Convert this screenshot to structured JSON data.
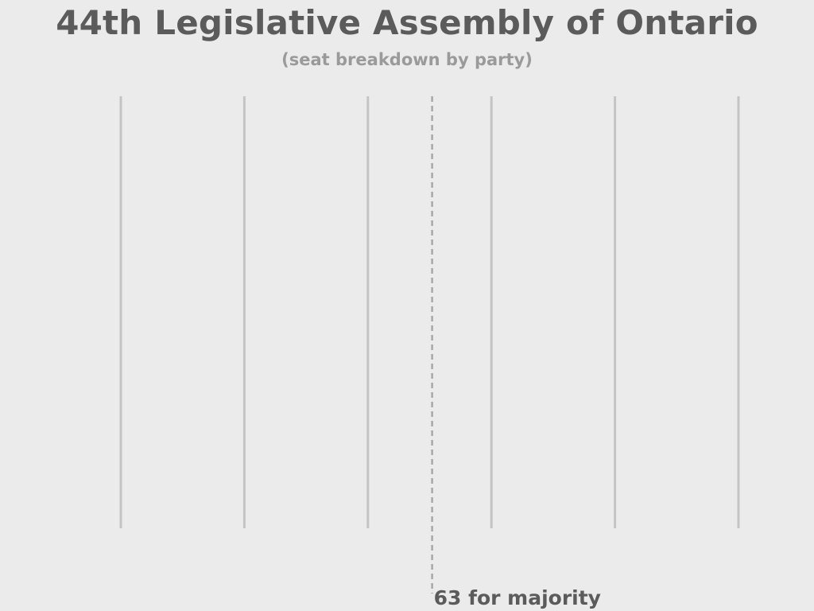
{
  "title": "44th Legislative Assembly of Ontario",
  "subtitle": "(seat breakdown by party)",
  "chart_data": {
    "type": "bar",
    "orientation": "horizontal",
    "title": "44th Legislative Assembly of Ontario",
    "subtitle": "(seat breakdown by party)",
    "grid": true,
    "xlim": [
      0,
      125
    ],
    "gridline_values": [
      0,
      25,
      50,
      75,
      100,
      125
    ],
    "categories": [],
    "values": [],
    "annotations": [
      {
        "type": "reference-line",
        "value": 63,
        "style": "dashed",
        "label": "63 for majority"
      }
    ],
    "colors": {
      "gridline": "#c4c4c4",
      "reference_line": "#a8a8a8",
      "title": "#5b5b5b",
      "subtitle": "#9a9a9a"
    }
  }
}
